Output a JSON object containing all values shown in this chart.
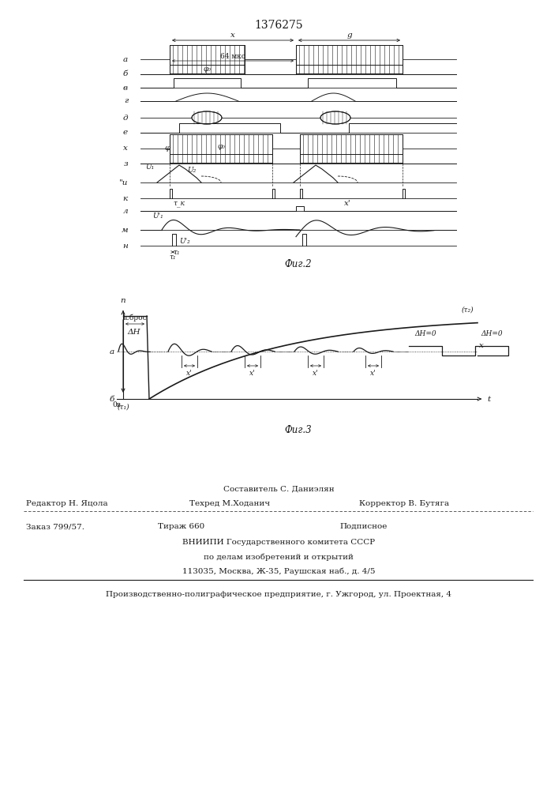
{
  "patent_number": "1376275",
  "fig2_label": "Фиг.2",
  "fig3_label": "Фиг.3",
  "footer_line1": "Составитель С. Даниэлян",
  "footer_line2_left": "Редактор Н. Яцола",
  "footer_line2_mid": "Техред М.Ходанич",
  "footer_line2_right": "Корректор В. Бутяга",
  "footer_line3_left": "Заказ 799/57.",
  "footer_line3_mid": "Тираж 660",
  "footer_line3_right": "Подписное",
  "footer_line4": "ВНИИПИ Государственного комитета СССР",
  "footer_line5": "по делам изобретений и открытий",
  "footer_line6": "113035, Москва, Ж-35, Раушская наб., д. 4/5",
  "footer_bottom": "Производственно-полиграфическое предприятие, г. Ужгород, ул. Проектная, 4",
  "line_color": "#1a1a1a"
}
